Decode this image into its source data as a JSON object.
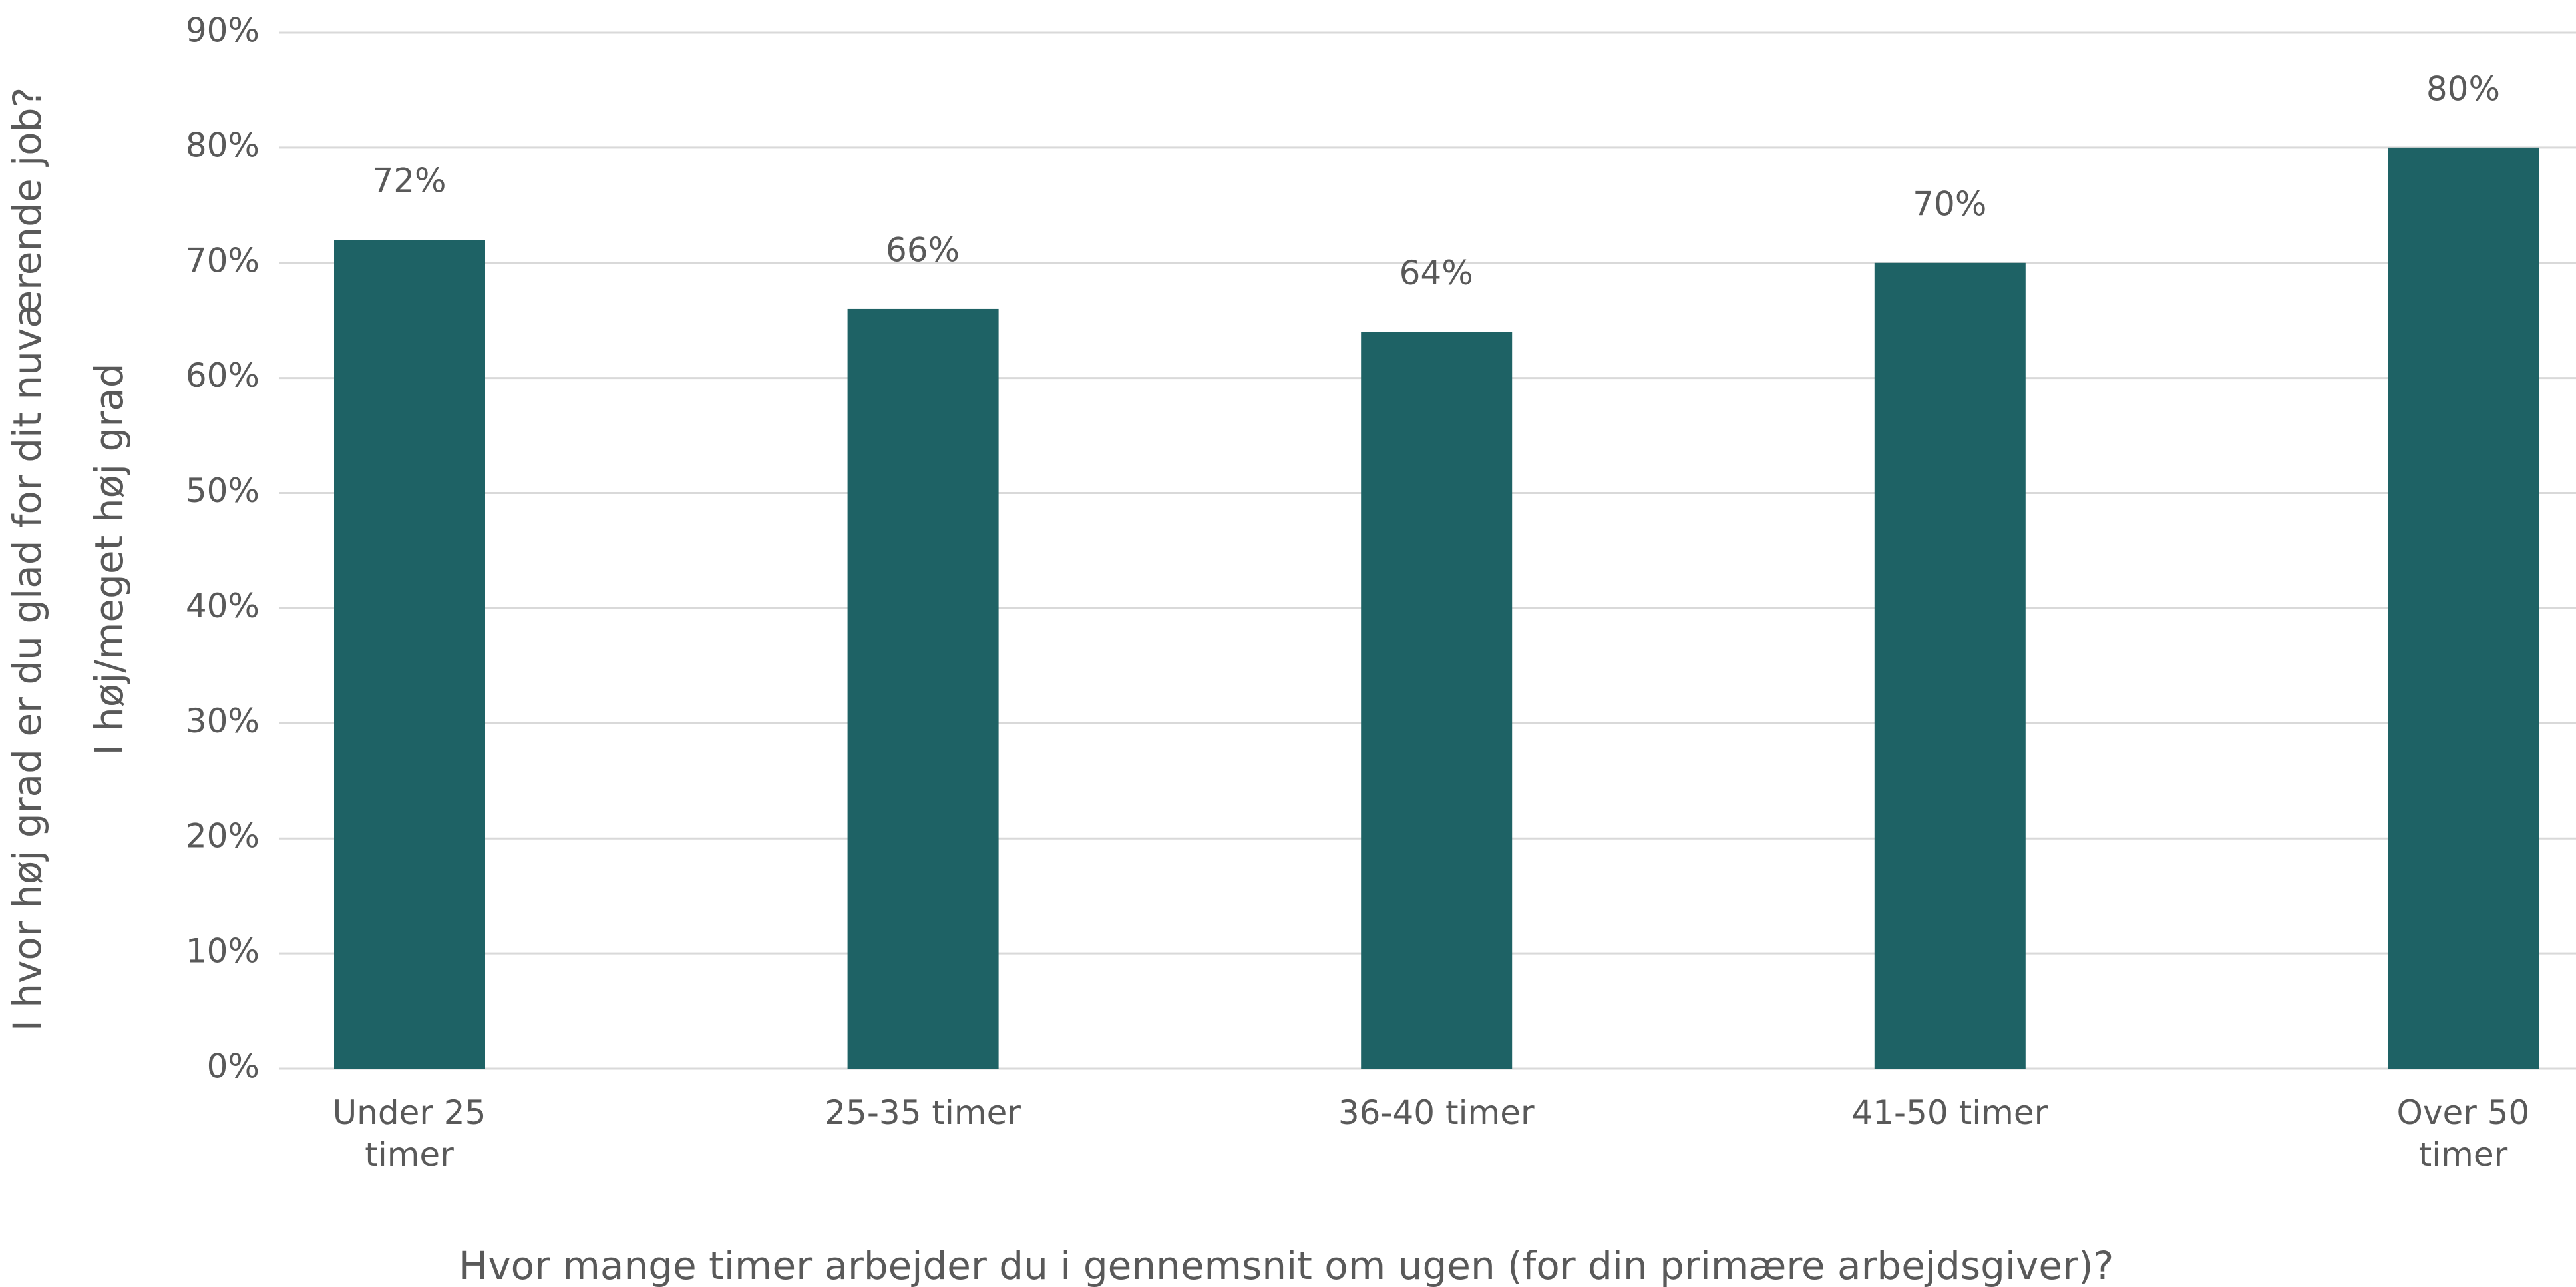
{
  "chart_data": {
    "type": "bar",
    "ylabel": [
      "I hvor høj grad er du glad for dit nuværende job?",
      "I høj/meget høj grad"
    ],
    "xlabel": "Hvor mange timer arbejder du i gennemsnit om ugen (for din primære arbejdsgiver)?",
    "categories": [
      "Under 25 timer",
      "25-35 timer",
      "36-40 timer",
      "41-50 timer",
      "Over 50 timer"
    ],
    "values": [
      72,
      66,
      64,
      70,
      80
    ],
    "value_labels": [
      "72%",
      "66%",
      "64%",
      "70%",
      "80%"
    ],
    "color": "#1e6265",
    "ylim": [
      0,
      90
    ],
    "yticks": [
      {
        "value": 0,
        "label": "0%"
      },
      {
        "value": 10,
        "label": "10%"
      },
      {
        "value": 20,
        "label": "20%"
      },
      {
        "value": 30,
        "label": "30%"
      },
      {
        "value": 40,
        "label": "40%"
      },
      {
        "value": 50,
        "label": "50%"
      },
      {
        "value": 60,
        "label": "60%"
      },
      {
        "value": 70,
        "label": "70%"
      },
      {
        "value": 80,
        "label": "80%"
      },
      {
        "value": 90,
        "label": "90%"
      }
    ],
    "grid": true
  }
}
